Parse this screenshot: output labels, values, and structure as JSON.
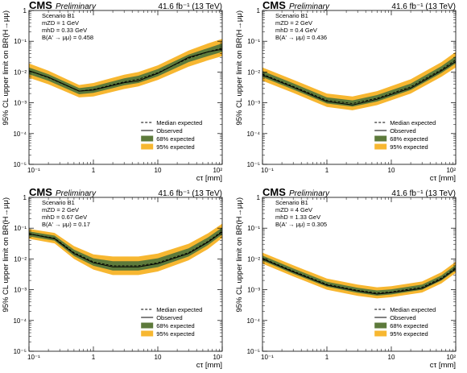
{
  "colors": {
    "band68": "#5d7a3b",
    "band95": "#f7b731",
    "observed": "#000000",
    "median": "#000000"
  },
  "chart_data": [
    {
      "type": "line",
      "experiment": "CMS",
      "status": "Preliminary",
      "lumi": "41.6 fb⁻¹ (13 TeV)",
      "annotations": [
        "Scenario B1",
        "mZD = 1 GeV",
        "mhD = 0.33 GeV",
        "B(A' → μμ) = 0.458"
      ],
      "xlabel": "cτ [mm]",
      "ylabel": "95% CL upper limit on BR(H→μμ)",
      "xscale": "log",
      "yscale": "log",
      "xlim": [
        0.1,
        100
      ],
      "ylim": [
        1e-05,
        1
      ],
      "x_ticks": [
        "10⁻¹",
        "1",
        "10",
        "10²"
      ],
      "y_ticks": [
        "10⁻⁵",
        "10⁻⁴",
        "10⁻³",
        "10⁻²",
        "10⁻¹",
        "1"
      ],
      "legend": [
        "Median expected",
        "Observed",
        "68% expected",
        "95% expected"
      ],
      "legend_position": "bottom-right",
      "x": [
        0.1,
        0.2,
        0.6,
        1,
        3,
        5,
        10,
        30,
        60,
        100
      ],
      "observed": [
        0.011,
        0.0068,
        0.0024,
        0.0026,
        0.0045,
        0.0052,
        0.009,
        0.03,
        0.045,
        0.055
      ],
      "median": [
        0.011,
        0.0066,
        0.0024,
        0.0027,
        0.0048,
        0.0058,
        0.0095,
        0.028,
        0.045,
        0.06
      ],
      "band68": {
        "low": [
          0.0085,
          0.0052,
          0.0019,
          0.0021,
          0.0037,
          0.0044,
          0.0072,
          0.021,
          0.033,
          0.045
        ],
        "high": [
          0.014,
          0.0085,
          0.003,
          0.0034,
          0.0062,
          0.0076,
          0.0125,
          0.037,
          0.06,
          0.085
        ]
      },
      "band95": {
        "low": [
          0.0065,
          0.004,
          0.0015,
          0.0016,
          0.0028,
          0.0034,
          0.0055,
          0.015,
          0.024,
          0.033
        ],
        "high": [
          0.019,
          0.011,
          0.0038,
          0.0044,
          0.0082,
          0.01,
          0.0165,
          0.05,
          0.085,
          0.12
        ]
      }
    },
    {
      "type": "line",
      "experiment": "CMS",
      "status": "Preliminary",
      "lumi": "41.6 fb⁻¹ (13 TeV)",
      "annotations": [
        "Scenario B1",
        "mZD = 2 GeV",
        "mhD = 0.4 GeV",
        "B(A' → μμ) = 0.436"
      ],
      "xlabel": "cτ [mm]",
      "ylabel": "95% CL upper limit on BR(H→μμ)",
      "xscale": "log",
      "yscale": "log",
      "xlim": [
        0.1,
        100
      ],
      "ylim": [
        1e-05,
        1
      ],
      "x_ticks": [
        "10⁻¹",
        "1",
        "10",
        "10²"
      ],
      "y_ticks": [
        "10⁻⁵",
        "10⁻⁴",
        "10⁻³",
        "10⁻²",
        "10⁻¹",
        "1"
      ],
      "legend": [
        "Median expected",
        "Observed",
        "68% expected",
        "95% expected"
      ],
      "legend_position": "bottom-right",
      "x": [
        0.1,
        0.3,
        1,
        2.5,
        6,
        20,
        60,
        100
      ],
      "observed": [
        0.008,
        0.0032,
        0.0011,
        0.00085,
        0.0013,
        0.003,
        0.011,
        0.022
      ],
      "median": [
        0.0085,
        0.0034,
        0.0012,
        0.00095,
        0.0014,
        0.0033,
        0.012,
        0.025
      ],
      "band68": {
        "low": [
          0.0068,
          0.0027,
          0.00095,
          0.00075,
          0.0011,
          0.0026,
          0.0093,
          0.019
        ],
        "high": [
          0.0108,
          0.0043,
          0.0015,
          0.0012,
          0.00178,
          0.0042,
          0.0155,
          0.033
        ]
      },
      "band95": {
        "low": [
          0.0052,
          0.0021,
          0.00073,
          0.00057,
          0.00084,
          0.002,
          0.007,
          0.014
        ],
        "high": [
          0.014,
          0.0056,
          0.002,
          0.0016,
          0.0024,
          0.0058,
          0.021,
          0.045
        ]
      }
    },
    {
      "type": "line",
      "experiment": "CMS",
      "status": "Preliminary",
      "lumi": "41.6 fb⁻¹ (13 TeV)",
      "annotations": [
        "Scenario B1",
        "mZD = 2 GeV",
        "mhD = 0.67 GeV",
        "B(A' → μμ) = 0.17"
      ],
      "xlabel": "cτ [mm]",
      "ylabel": "95% CL upper limit on BR(H→μμ)",
      "xscale": "log",
      "yscale": "log",
      "xlim": [
        0.1,
        100
      ],
      "ylim": [
        1e-05,
        1
      ],
      "x_ticks": [
        "10⁻¹",
        "1",
        "10",
        "10²"
      ],
      "y_ticks": [
        "10⁻⁵",
        "10⁻⁴",
        "10⁻³",
        "10⁻²",
        "10⁻¹",
        "1"
      ],
      "legend": [
        "Median expected",
        "Observed",
        "68% expected",
        "95% expected"
      ],
      "legend_position": "bottom-right",
      "x": [
        0.1,
        0.25,
        0.5,
        1,
        2,
        5,
        10,
        30,
        60,
        100
      ],
      "observed": [
        0.065,
        0.045,
        0.015,
        0.0075,
        0.0055,
        0.0055,
        0.007,
        0.015,
        0.035,
        0.075
      ],
      "median": [
        0.065,
        0.047,
        0.016,
        0.008,
        0.006,
        0.006,
        0.0075,
        0.016,
        0.037,
        0.08
      ],
      "band68": {
        "low": [
          0.054,
          0.039,
          0.0125,
          0.006,
          0.0042,
          0.0042,
          0.0054,
          0.012,
          0.028,
          0.062
        ],
        "high": [
          0.078,
          0.057,
          0.02,
          0.0105,
          0.0084,
          0.0084,
          0.0105,
          0.022,
          0.05,
          0.105
        ]
      },
      "band95": {
        "low": [
          0.045,
          0.032,
          0.01,
          0.0045,
          0.003,
          0.003,
          0.0039,
          0.009,
          0.021,
          0.048
        ],
        "high": [
          0.095,
          0.07,
          0.026,
          0.014,
          0.012,
          0.012,
          0.015,
          0.031,
          0.068,
          0.14
        ]
      }
    },
    {
      "type": "line",
      "experiment": "CMS",
      "status": "Preliminary",
      "lumi": "41.6 fb⁻¹ (13 TeV)",
      "annotations": [
        "Scenario B1",
        "mZD = 4 GeV",
        "mhD = 1.33 GeV",
        "B(A' → μμ) = 0.305"
      ],
      "xlabel": "cτ [mm]",
      "ylabel": "95% CL upper limit on BR(H→μμ)",
      "xscale": "log",
      "yscale": "log",
      "xlim": [
        0.1,
        100
      ],
      "ylim": [
        1e-05,
        1
      ],
      "x_ticks": [
        "10⁻¹",
        "1",
        "10",
        "10²"
      ],
      "y_ticks": [
        "10⁻⁵",
        "10⁻⁴",
        "10⁻³",
        "10⁻²",
        "10⁻¹",
        "1"
      ],
      "legend": [
        "Median expected",
        "Observed",
        "68% expected",
        "95% expected"
      ],
      "legend_position": "bottom-right",
      "x": [
        0.1,
        0.3,
        1,
        3,
        6,
        10,
        30,
        60,
        100
      ],
      "observed": [
        0.01,
        0.0038,
        0.0014,
        0.0009,
        0.00072,
        0.0008,
        0.0011,
        0.0022,
        0.0048
      ],
      "median": [
        0.0105,
        0.004,
        0.0015,
        0.00095,
        0.00078,
        0.00085,
        0.0012,
        0.0024,
        0.0052
      ],
      "band68": {
        "low": [
          0.0088,
          0.0033,
          0.00125,
          0.00079,
          0.00064,
          0.0007,
          0.001,
          0.002,
          0.0043
        ],
        "high": [
          0.0128,
          0.0049,
          0.0018,
          0.00115,
          0.00095,
          0.00103,
          0.00146,
          0.0029,
          0.0064
        ]
      },
      "band95": {
        "low": [
          0.007,
          0.0027,
          0.001,
          0.00063,
          0.00052,
          0.00057,
          0.00081,
          0.0016,
          0.0035
        ],
        "high": [
          0.016,
          0.0062,
          0.0023,
          0.00146,
          0.0012,
          0.0013,
          0.00185,
          0.0037,
          0.0081
        ]
      }
    }
  ]
}
